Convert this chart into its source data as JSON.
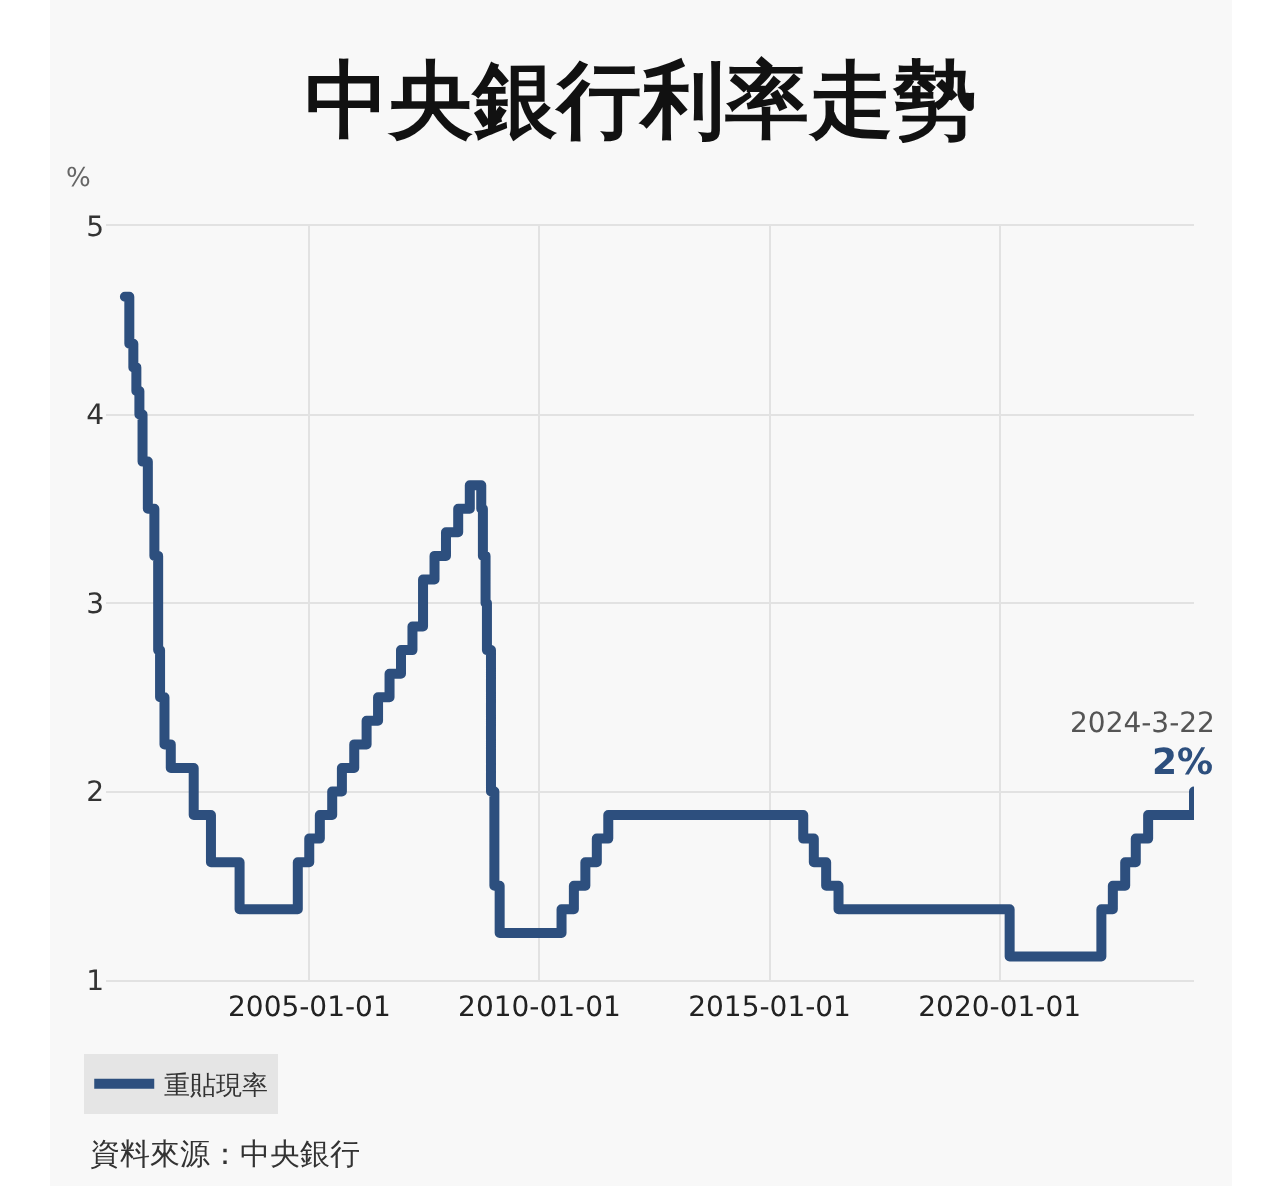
{
  "chart_data": {
    "type": "step",
    "title": "中央銀行利率走勢",
    "ylabel": "%",
    "x": [
      "2000-12-29",
      "2001-02-02",
      "2001-03-06",
      "2001-03-30",
      "2001-04-23",
      "2001-05-18",
      "2001-06-29",
      "2001-08-20",
      "2001-09-19",
      "2001-10-04",
      "2001-11-08",
      "2001-12-28",
      "2002-06-28",
      "2002-11-12",
      "2003-06-27",
      "2004-10-01",
      "2004-12-31",
      "2005-03-25",
      "2005-07-01",
      "2005-09-16",
      "2005-12-23",
      "2006-03-31",
      "2006-06-30",
      "2006-09-29",
      "2006-12-29",
      "2007-03-30",
      "2007-06-22",
      "2007-09-21",
      "2007-12-21",
      "2008-03-27",
      "2008-06-27",
      "2008-09-26",
      "2008-10-09",
      "2008-10-30",
      "2008-11-10",
      "2008-12-12",
      "2009-01-08",
      "2009-02-19",
      "2010-06-25",
      "2010-10-01",
      "2010-12-31",
      "2011-04-01",
      "2011-07-01",
      "2015-09-25",
      "2015-12-18",
      "2016-03-25",
      "2016-07-01",
      "2020-03-20",
      "2022-03-18",
      "2022-06-17",
      "2022-09-23",
      "2022-12-16",
      "2023-03-24",
      "2024-03-22"
    ],
    "series": [
      {
        "name": "重貼現率",
        "color": "#2d4f7e",
        "values": [
          4.625,
          4.375,
          4.25,
          4.125,
          4,
          3.75,
          3.5,
          3.25,
          2.75,
          2.5,
          2.25,
          2.125,
          1.875,
          1.625,
          1.375,
          1.625,
          1.75,
          1.875,
          2,
          2.125,
          2.25,
          2.375,
          2.5,
          2.625,
          2.75,
          2.875,
          3.125,
          3.25,
          3.375,
          3.5,
          3.625,
          3.5,
          3.25,
          3,
          2.75,
          2,
          1.5,
          1.25,
          1.375,
          1.5,
          1.625,
          1.75,
          1.875,
          1.75,
          1.625,
          1.5,
          1.375,
          1.125,
          1.375,
          1.5,
          1.625,
          1.75,
          1.875,
          2
        ],
        "value_labels": [
          null,
          null,
          null,
          null,
          null,
          null,
          null,
          null,
          null,
          null,
          null,
          null,
          null,
          null,
          null,
          null,
          null,
          null,
          null,
          null,
          null,
          null,
          null,
          null,
          null,
          null,
          null,
          null,
          null,
          null,
          null,
          null,
          null,
          null,
          null,
          null,
          null,
          null,
          null,
          null,
          null,
          null,
          null,
          null,
          null,
          null,
          null,
          null,
          null,
          null,
          null,
          null,
          null,
          "2%"
        ]
      }
    ],
    "xlim": [
      "2000-08-01",
      "2024-03-22"
    ],
    "xticks": [
      "2005-01-01",
      "2010-01-01",
      "2015-01-01",
      "2020-01-01"
    ],
    "ylim": [
      1,
      5
    ],
    "yticks": [
      1,
      2,
      3,
      4,
      5
    ],
    "grid": true,
    "legend": "bottom left",
    "line_style": "solid",
    "annotations": [
      {
        "text": "2024-3-22",
        "x": "2024-03-22",
        "y": 2
      },
      "資料來源：中央銀行"
    ]
  }
}
